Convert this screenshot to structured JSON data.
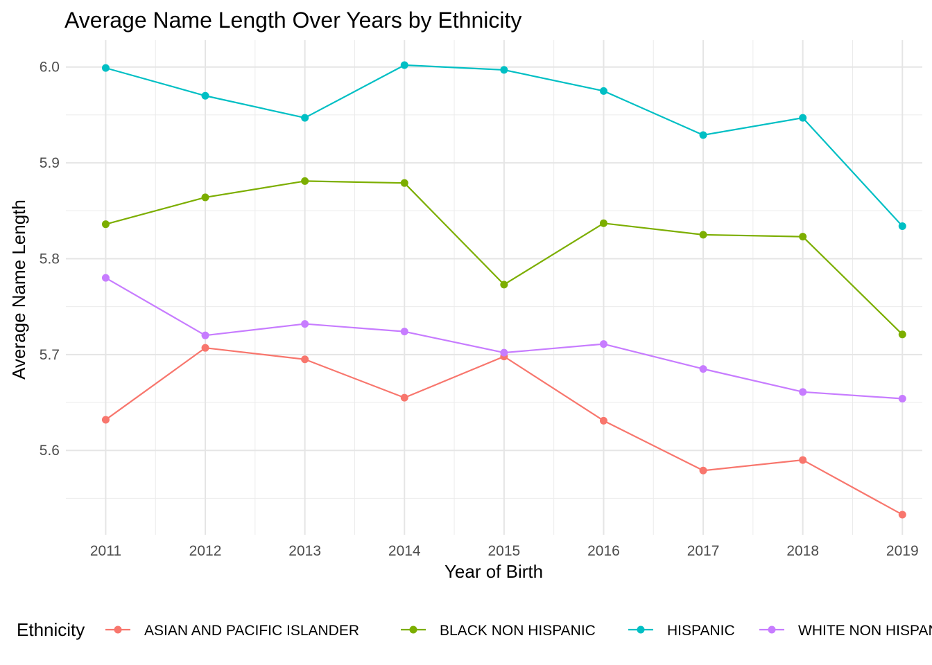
{
  "chart_data": {
    "type": "line",
    "title": "Average Name Length Over Years by Ethnicity",
    "xlabel": "Year of Birth",
    "ylabel": "Average Name Length",
    "x": [
      2011,
      2012,
      2013,
      2014,
      2015,
      2016,
      2017,
      2018,
      2019
    ],
    "x_tick_labels": [
      "2011",
      "2012",
      "2013",
      "2014",
      "2015",
      "2016",
      "2017",
      "2018",
      "2019"
    ],
    "y_tick_labels": [
      "5.6",
      "5.7",
      "5.8",
      "5.9",
      "6.0"
    ],
    "y_ticks": [
      5.6,
      5.7,
      5.8,
      5.9,
      6.0
    ],
    "xlim": [
      2010.6,
      2019.2
    ],
    "ylim": [
      5.512,
      6.028
    ],
    "grid": true,
    "legend_position": "bottom",
    "legend_title": "Ethnicity",
    "series": [
      {
        "name": "ASIAN AND PACIFIC ISLANDER",
        "color": "#F8766D",
        "values": [
          5.632,
          5.707,
          5.695,
          5.655,
          5.698,
          5.631,
          5.579,
          5.59,
          5.533
        ]
      },
      {
        "name": "BLACK NON HISPANIC",
        "color": "#7CAE00",
        "values": [
          5.836,
          5.864,
          5.881,
          5.879,
          5.773,
          5.837,
          5.825,
          5.823,
          5.721
        ]
      },
      {
        "name": "HISPANIC",
        "color": "#00BFC4",
        "values": [
          5.999,
          5.97,
          5.947,
          6.002,
          5.997,
          5.975,
          5.929,
          5.947,
          5.834
        ]
      },
      {
        "name": "WHITE NON HISPANIC",
        "color": "#C77CFF",
        "values": [
          5.78,
          5.72,
          5.732,
          5.724,
          5.702,
          5.711,
          5.685,
          5.661,
          5.654
        ]
      }
    ]
  }
}
